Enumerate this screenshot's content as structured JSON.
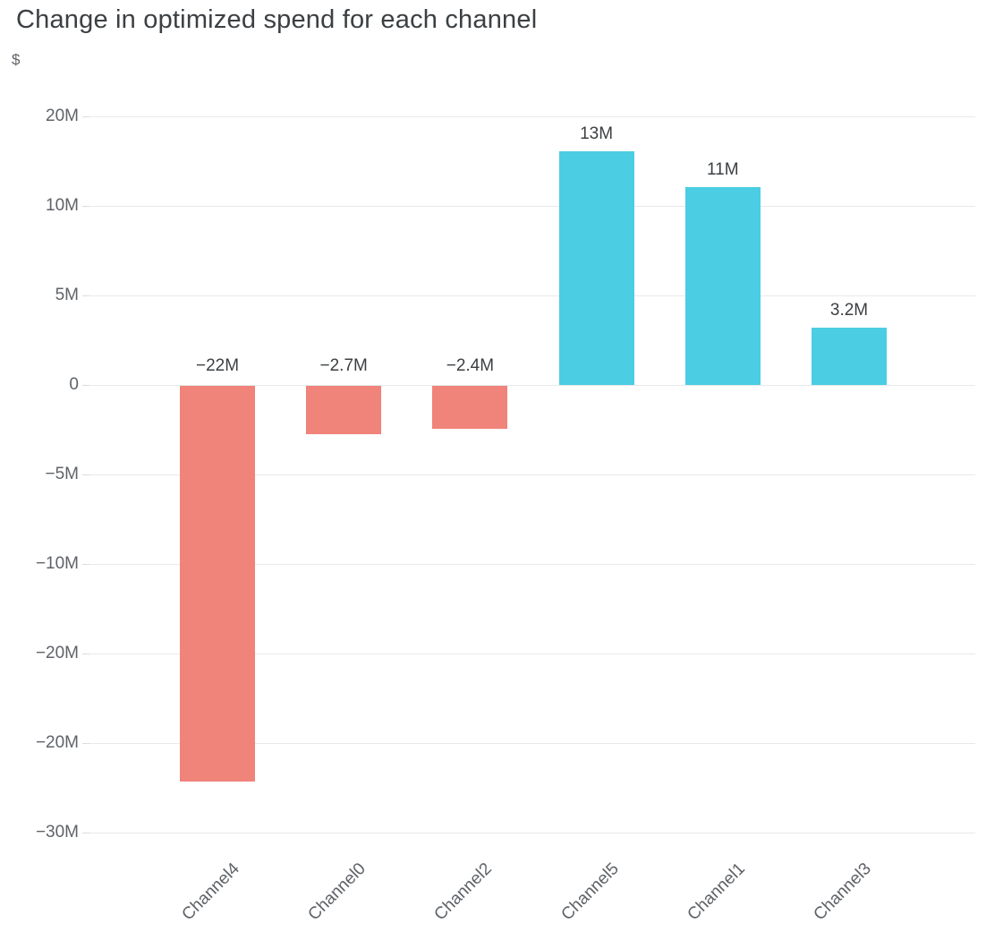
{
  "page": {
    "background": "#ffffff"
  },
  "chart_data": {
    "type": "bar",
    "title": "Change in optimized spend for each channel",
    "unit": "$",
    "xlabel": "",
    "ylabel": "$",
    "categories": [
      "Channel4",
      "Channel0",
      "Channel2",
      "Channel5",
      "Channel1",
      "Channel3"
    ],
    "values": [
      -22,
      -2.7,
      -2.4,
      13,
      11,
      3.2
    ],
    "value_labels": [
      "−22M",
      "−2.7M",
      "−2.4M",
      "13M",
      "11M",
      "3.2M"
    ],
    "y_tick_labels": [
      "20M",
      "10M",
      "5M",
      "0",
      "−5M",
      "−10M",
      "−20M",
      "−20M",
      "−30M"
    ],
    "zero_tick_index": 3,
    "grid": true,
    "legend": false,
    "colors": {
      "positive": "#4bcde3",
      "negative": "#f0837a",
      "title_text": "#3c4043",
      "axis_text": "#5f6368",
      "gridline": "#e7e9ec"
    }
  }
}
